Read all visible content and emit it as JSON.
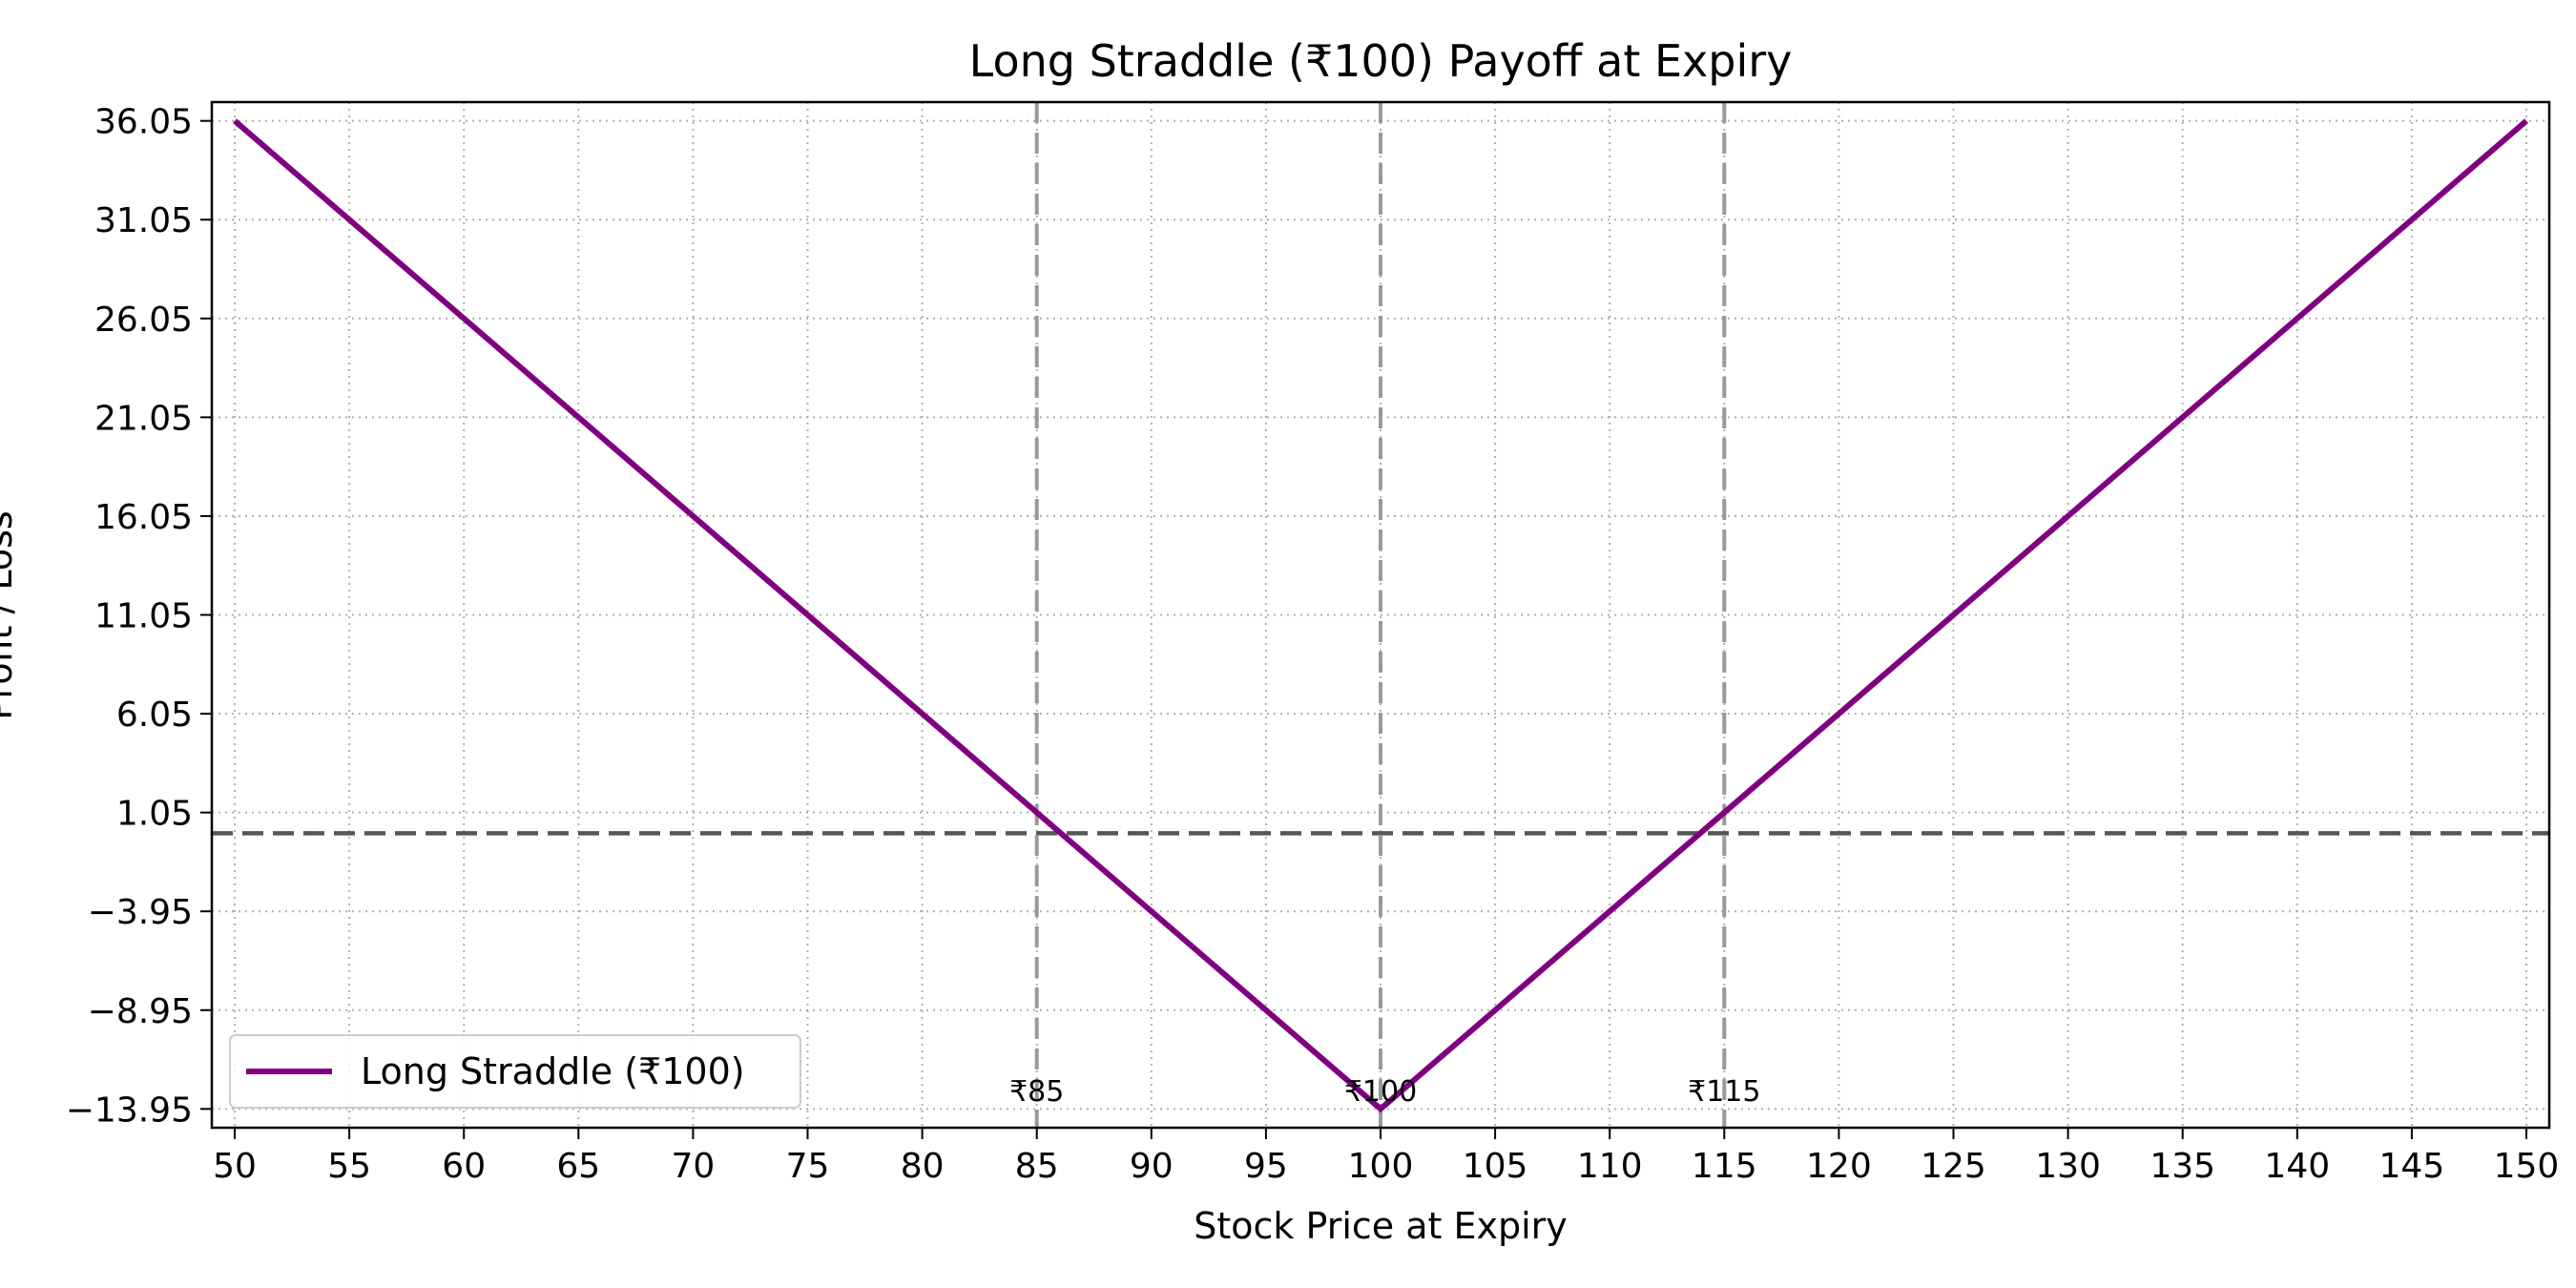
{
  "chart_data": {
    "type": "line",
    "title": "Long Straddle (₹100) Payoff at Expiry",
    "xlabel": "Stock Price at Expiry",
    "ylabel": "Profit / Loss",
    "xlim": [
      49,
      151
    ],
    "ylim": [
      -14.9,
      37.0
    ],
    "x_ticks": [
      50,
      55,
      60,
      65,
      70,
      75,
      80,
      85,
      90,
      95,
      100,
      105,
      110,
      115,
      120,
      125,
      130,
      135,
      140,
      145,
      150
    ],
    "x_tick_labels": [
      "50",
      "55",
      "60",
      "65",
      "70",
      "75",
      "80",
      "85",
      "90",
      "95",
      "100",
      "105",
      "110",
      "115",
      "120",
      "125",
      "130",
      "135",
      "140",
      "145",
      "150"
    ],
    "y_ticks": [
      -13.95,
      -8.95,
      -3.95,
      1.05,
      6.05,
      11.05,
      16.05,
      21.05,
      26.05,
      31.05,
      36.05
    ],
    "y_tick_labels": [
      "−13.95",
      "−8.95",
      "−3.95",
      "1.05",
      "6.05",
      "11.05",
      "16.05",
      "21.05",
      "26.05",
      "31.05",
      "36.05"
    ],
    "grid": true,
    "legend": {
      "position": "lower-left",
      "entries": [
        "Long Straddle (₹100)"
      ]
    },
    "series": [
      {
        "name": "Long Straddle (₹100)",
        "color": "#800080",
        "x": [
          50,
          100,
          150
        ],
        "y": [
          36.05,
          -13.95,
          36.05
        ]
      }
    ],
    "reference_lines": {
      "horizontal": {
        "y": 0,
        "color": "#555555",
        "style": "dashed"
      },
      "vertical": [
        {
          "x": 85,
          "label": "₹85",
          "color": "#999999",
          "style": "dashed"
        },
        {
          "x": 100,
          "label": "₹100",
          "color": "#999999",
          "style": "dashed"
        },
        {
          "x": 115,
          "label": "₹115",
          "color": "#999999",
          "style": "dashed"
        }
      ]
    }
  }
}
